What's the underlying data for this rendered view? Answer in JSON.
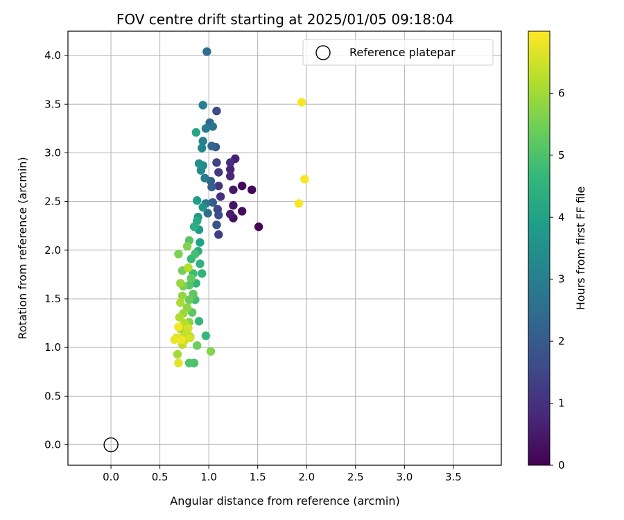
{
  "chart_data": {
    "type": "scatter",
    "title": "FOV centre drift starting at 2025/01/05 09:18:04",
    "xlabel": "Angular distance from reference (arcmin)",
    "ylabel": "Rotation from reference (arcmin)",
    "xlim": [
      -0.44,
      3.99
    ],
    "ylim": [
      -0.21,
      4.25
    ],
    "xticks": [
      0.0,
      0.5,
      1.0,
      1.5,
      2.0,
      2.5,
      3.0,
      3.5
    ],
    "yticks": [
      0.0,
      0.5,
      1.0,
      1.5,
      2.0,
      2.5,
      3.0,
      3.5,
      4.0
    ],
    "grid": true,
    "legend": {
      "location": "top-right",
      "entries": [
        "Reference platepar"
      ]
    },
    "reference": {
      "x": 0.0,
      "y": 0.0,
      "label": "Reference platepar"
    },
    "colorbar": {
      "label": "Hours from first FF file",
      "range": [
        0,
        7
      ],
      "ticks": [
        0,
        1,
        2,
        3,
        4,
        5,
        6
      ],
      "colormap": "viridis"
    },
    "points": [
      {
        "x": 1.51,
        "y": 2.24,
        "h": 0.05
      },
      {
        "x": 1.44,
        "y": 2.62,
        "h": 0.1
      },
      {
        "x": 1.34,
        "y": 2.66,
        "h": 0.15
      },
      {
        "x": 1.34,
        "y": 2.4,
        "h": 0.2
      },
      {
        "x": 1.25,
        "y": 2.33,
        "h": 0.3
      },
      {
        "x": 1.25,
        "y": 2.46,
        "h": 0.35
      },
      {
        "x": 1.25,
        "y": 2.62,
        "h": 0.45
      },
      {
        "x": 1.22,
        "y": 2.37,
        "h": 0.55
      },
      {
        "x": 1.27,
        "y": 2.94,
        "h": 0.6
      },
      {
        "x": 1.22,
        "y": 2.83,
        "h": 0.7
      },
      {
        "x": 1.22,
        "y": 2.76,
        "h": 0.8
      },
      {
        "x": 1.22,
        "y": 2.9,
        "h": 0.9
      },
      {
        "x": 1.12,
        "y": 2.55,
        "h": 1.0
      },
      {
        "x": 1.1,
        "y": 2.66,
        "h": 1.1
      },
      {
        "x": 1.1,
        "y": 2.8,
        "h": 1.2
      },
      {
        "x": 1.1,
        "y": 2.16,
        "h": 1.3
      },
      {
        "x": 1.08,
        "y": 2.9,
        "h": 1.4
      },
      {
        "x": 1.09,
        "y": 2.42,
        "h": 1.5
      },
      {
        "x": 1.08,
        "y": 3.43,
        "h": 1.6
      },
      {
        "x": 1.1,
        "y": 2.36,
        "h": 1.7
      },
      {
        "x": 1.08,
        "y": 2.26,
        "h": 1.8
      },
      {
        "x": 1.07,
        "y": 3.06,
        "h": 1.9
      },
      {
        "x": 1.04,
        "y": 2.49,
        "h": 2.0
      },
      {
        "x": 1.03,
        "y": 2.65,
        "h": 2.1
      },
      {
        "x": 1.02,
        "y": 2.71,
        "h": 2.2
      },
      {
        "x": 1.03,
        "y": 3.07,
        "h": 2.3
      },
      {
        "x": 1.01,
        "y": 3.31,
        "h": 2.4
      },
      {
        "x": 0.98,
        "y": 4.04,
        "h": 2.5
      },
      {
        "x": 0.99,
        "y": 2.38,
        "h": 2.6
      },
      {
        "x": 1.04,
        "y": 3.27,
        "h": 2.7
      },
      {
        "x": 0.97,
        "y": 2.48,
        "h": 2.8
      },
      {
        "x": 0.96,
        "y": 2.74,
        "h": 2.9
      },
      {
        "x": 0.97,
        "y": 3.25,
        "h": 3.0
      },
      {
        "x": 0.94,
        "y": 3.49,
        "h": 3.05
      },
      {
        "x": 0.94,
        "y": 3.12,
        "h": 3.1
      },
      {
        "x": 0.93,
        "y": 3.05,
        "h": 3.2
      },
      {
        "x": 0.94,
        "y": 2.87,
        "h": 3.3
      },
      {
        "x": 0.92,
        "y": 2.82,
        "h": 3.4
      },
      {
        "x": 0.9,
        "y": 2.89,
        "h": 3.5
      },
      {
        "x": 0.94,
        "y": 2.44,
        "h": 3.6
      },
      {
        "x": 0.89,
        "y": 2.34,
        "h": 3.7
      },
      {
        "x": 0.9,
        "y": 2.21,
        "h": 3.8
      },
      {
        "x": 0.88,
        "y": 2.51,
        "h": 3.9
      },
      {
        "x": 0.91,
        "y": 2.08,
        "h": 4.0
      },
      {
        "x": 0.87,
        "y": 3.21,
        "h": 4.1
      },
      {
        "x": 0.88,
        "y": 2.3,
        "h": 4.2
      },
      {
        "x": 0.89,
        "y": 1.99,
        "h": 4.3
      },
      {
        "x": 0.85,
        "y": 2.24,
        "h": 4.4
      },
      {
        "x": 0.91,
        "y": 1.86,
        "h": 4.5
      },
      {
        "x": 0.93,
        "y": 1.76,
        "h": 4.55
      },
      {
        "x": 0.87,
        "y": 1.66,
        "h": 4.6
      },
      {
        "x": 0.9,
        "y": 1.27,
        "h": 4.65
      },
      {
        "x": 0.97,
        "y": 1.12,
        "h": 4.7
      },
      {
        "x": 0.82,
        "y": 1.91,
        "h": 4.75
      },
      {
        "x": 0.84,
        "y": 1.76,
        "h": 4.8
      },
      {
        "x": 0.86,
        "y": 1.49,
        "h": 4.85
      },
      {
        "x": 0.86,
        "y": 1.96,
        "h": 4.9
      },
      {
        "x": 0.85,
        "y": 0.84,
        "h": 5.0
      },
      {
        "x": 0.8,
        "y": 0.84,
        "h": 5.05
      },
      {
        "x": 0.8,
        "y": 1.64,
        "h": 5.1
      },
      {
        "x": 0.8,
        "y": 2.1,
        "h": 5.15
      },
      {
        "x": 0.83,
        "y": 1.36,
        "h": 5.2
      },
      {
        "x": 0.84,
        "y": 1.55,
        "h": 5.25
      },
      {
        "x": 0.82,
        "y": 1.71,
        "h": 5.3
      },
      {
        "x": 0.8,
        "y": 1.49,
        "h": 5.35
      },
      {
        "x": 0.88,
        "y": 1.02,
        "h": 5.4
      },
      {
        "x": 0.81,
        "y": 1.11,
        "h": 5.45
      },
      {
        "x": 0.73,
        "y": 1.79,
        "h": 5.5
      },
      {
        "x": 0.74,
        "y": 1.63,
        "h": 5.55
      },
      {
        "x": 0.69,
        "y": 1.96,
        "h": 5.6
      },
      {
        "x": 0.78,
        "y": 2.04,
        "h": 5.65
      },
      {
        "x": 1.02,
        "y": 0.96,
        "h": 5.7
      },
      {
        "x": 0.8,
        "y": 1.26,
        "h": 5.75
      },
      {
        "x": 0.78,
        "y": 1.41,
        "h": 5.8
      },
      {
        "x": 0.73,
        "y": 1.53,
        "h": 5.85
      },
      {
        "x": 0.71,
        "y": 1.66,
        "h": 5.9
      },
      {
        "x": 0.74,
        "y": 1.35,
        "h": 5.95
      },
      {
        "x": 0.71,
        "y": 1.19,
        "h": 6.0
      },
      {
        "x": 0.68,
        "y": 0.93,
        "h": 6.05
      },
      {
        "x": 0.71,
        "y": 1.46,
        "h": 6.1
      },
      {
        "x": 0.7,
        "y": 1.31,
        "h": 6.15
      },
      {
        "x": 0.79,
        "y": 1.82,
        "h": 6.2
      },
      {
        "x": 0.75,
        "y": 1.25,
        "h": 6.25
      },
      {
        "x": 0.73,
        "y": 1.03,
        "h": 6.3
      },
      {
        "x": 0.74,
        "y": 1.11,
        "h": 6.35
      },
      {
        "x": 0.78,
        "y": 1.17,
        "h": 6.4
      },
      {
        "x": 0.75,
        "y": 1.07,
        "h": 6.45
      },
      {
        "x": 0.79,
        "y": 1.2,
        "h": 6.5
      },
      {
        "x": 0.81,
        "y": 1.1,
        "h": 6.55
      },
      {
        "x": 0.67,
        "y": 1.1,
        "h": 6.6
      },
      {
        "x": 0.69,
        "y": 0.84,
        "h": 6.7
      },
      {
        "x": 0.65,
        "y": 1.08,
        "h": 6.8
      },
      {
        "x": 0.72,
        "y": 1.08,
        "h": 6.85
      },
      {
        "x": 0.69,
        "y": 1.21,
        "h": 6.9
      },
      {
        "x": 1.95,
        "y": 3.52,
        "h": 6.95
      },
      {
        "x": 1.98,
        "y": 2.73,
        "h": 6.95
      },
      {
        "x": 1.92,
        "y": 2.48,
        "h": 6.95
      }
    ]
  }
}
